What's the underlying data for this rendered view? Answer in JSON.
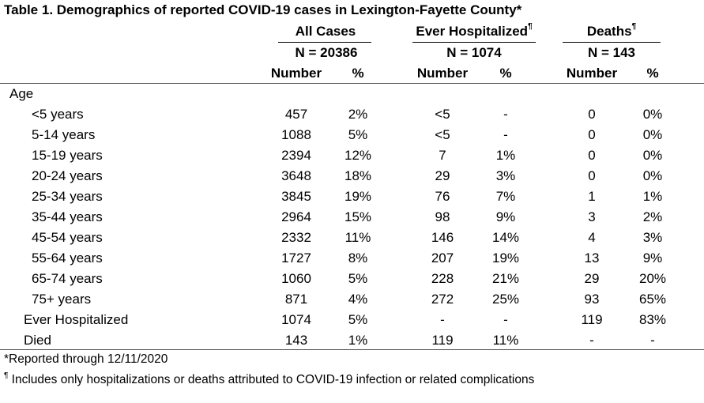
{
  "title": "Table 1. Demographics of reported COVID-19 cases in Lexington-Fayette County*",
  "groups": [
    {
      "name": "All Cases",
      "mark": "",
      "n": "N = 20386"
    },
    {
      "name": "Ever Hospitalized",
      "mark": "¶",
      "n": "N = 1074"
    },
    {
      "name": "Deaths",
      "mark": "¶",
      "n": "N = 143"
    }
  ],
  "subheaders": [
    "Number",
    "%",
    "Number",
    "%",
    "Number",
    "%"
  ],
  "section_label": "Age",
  "rows": [
    {
      "label": "<5 years",
      "values": [
        "457",
        "2%",
        "<5",
        "-",
        "0",
        "0%"
      ]
    },
    {
      "label": "5-14 years",
      "values": [
        "1088",
        "5%",
        "<5",
        "-",
        "0",
        "0%"
      ]
    },
    {
      "label": "15-19 years",
      "values": [
        "2394",
        "12%",
        "7",
        "1%",
        "0",
        "0%"
      ]
    },
    {
      "label": "20-24 years",
      "values": [
        "3648",
        "18%",
        "29",
        "3%",
        "0",
        "0%"
      ]
    },
    {
      "label": "25-34 years",
      "values": [
        "3845",
        "19%",
        "76",
        "7%",
        "1",
        "1%"
      ]
    },
    {
      "label": "35-44 years",
      "values": [
        "2964",
        "15%",
        "98",
        "9%",
        "3",
        "2%"
      ]
    },
    {
      "label": "45-54 years",
      "values": [
        "2332",
        "11%",
        "146",
        "14%",
        "4",
        "3%"
      ]
    },
    {
      "label": "55-64 years",
      "values": [
        "1727",
        "8%",
        "207",
        "19%",
        "13",
        "9%"
      ]
    },
    {
      "label": "65-74 years",
      "values": [
        "1060",
        "5%",
        "228",
        "21%",
        "29",
        "20%"
      ]
    },
    {
      "label": "75+ years",
      "values": [
        "871",
        "4%",
        "272",
        "25%",
        "93",
        "65%"
      ]
    },
    {
      "label": "Ever Hospitalized",
      "values": [
        "1074",
        "5%",
        "-",
        "-",
        "119",
        "83%"
      ]
    },
    {
      "label": "Died",
      "values": [
        "143",
        "1%",
        "119",
        "11%",
        "-",
        "-"
      ]
    }
  ],
  "footnotes": [
    {
      "mark": "",
      "text": "*Reported through 12/11/2020"
    },
    {
      "mark": "¶",
      "text": " Includes only hospitalizations or deaths attributed to COVID-19 infection or related complications"
    }
  ]
}
